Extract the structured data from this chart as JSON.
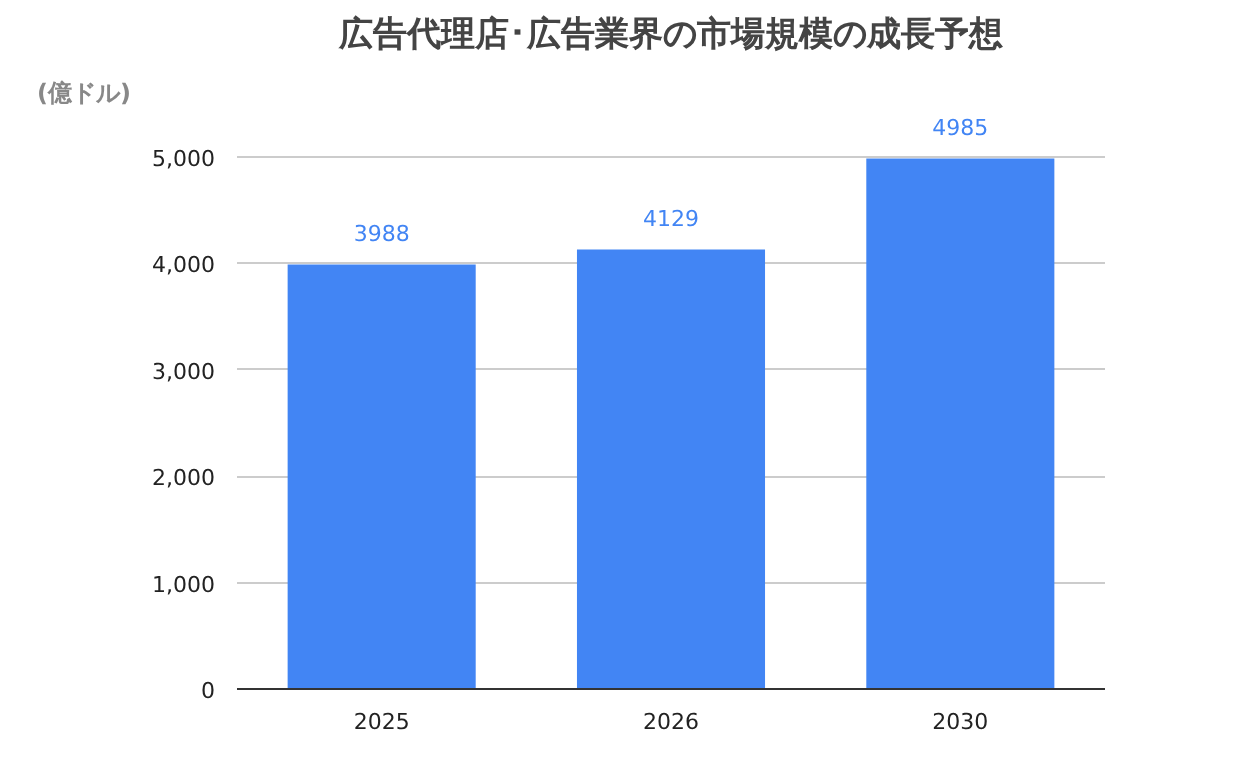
{
  "chart_data": {
    "type": "bar",
    "title": "広告代理店･広告業界の市場規模の成長予想",
    "ylabel": "(億ドル)",
    "categories": [
      "2025",
      "2026",
      "2030"
    ],
    "values": [
      3988,
      4129,
      4985
    ],
    "color": "#4285f4",
    "ylim": [
      0,
      5000
    ],
    "yticks": [
      {
        "value": 0,
        "label": "0"
      },
      {
        "value": 1000,
        "label": "1,000"
      },
      {
        "value": 2000,
        "label": "2,000"
      },
      {
        "value": 3000,
        "label": "3,000"
      },
      {
        "value": 4000,
        "label": "4,000"
      },
      {
        "value": 5000,
        "label": "5,000"
      }
    ],
    "grid": "y",
    "data_labels": true
  }
}
